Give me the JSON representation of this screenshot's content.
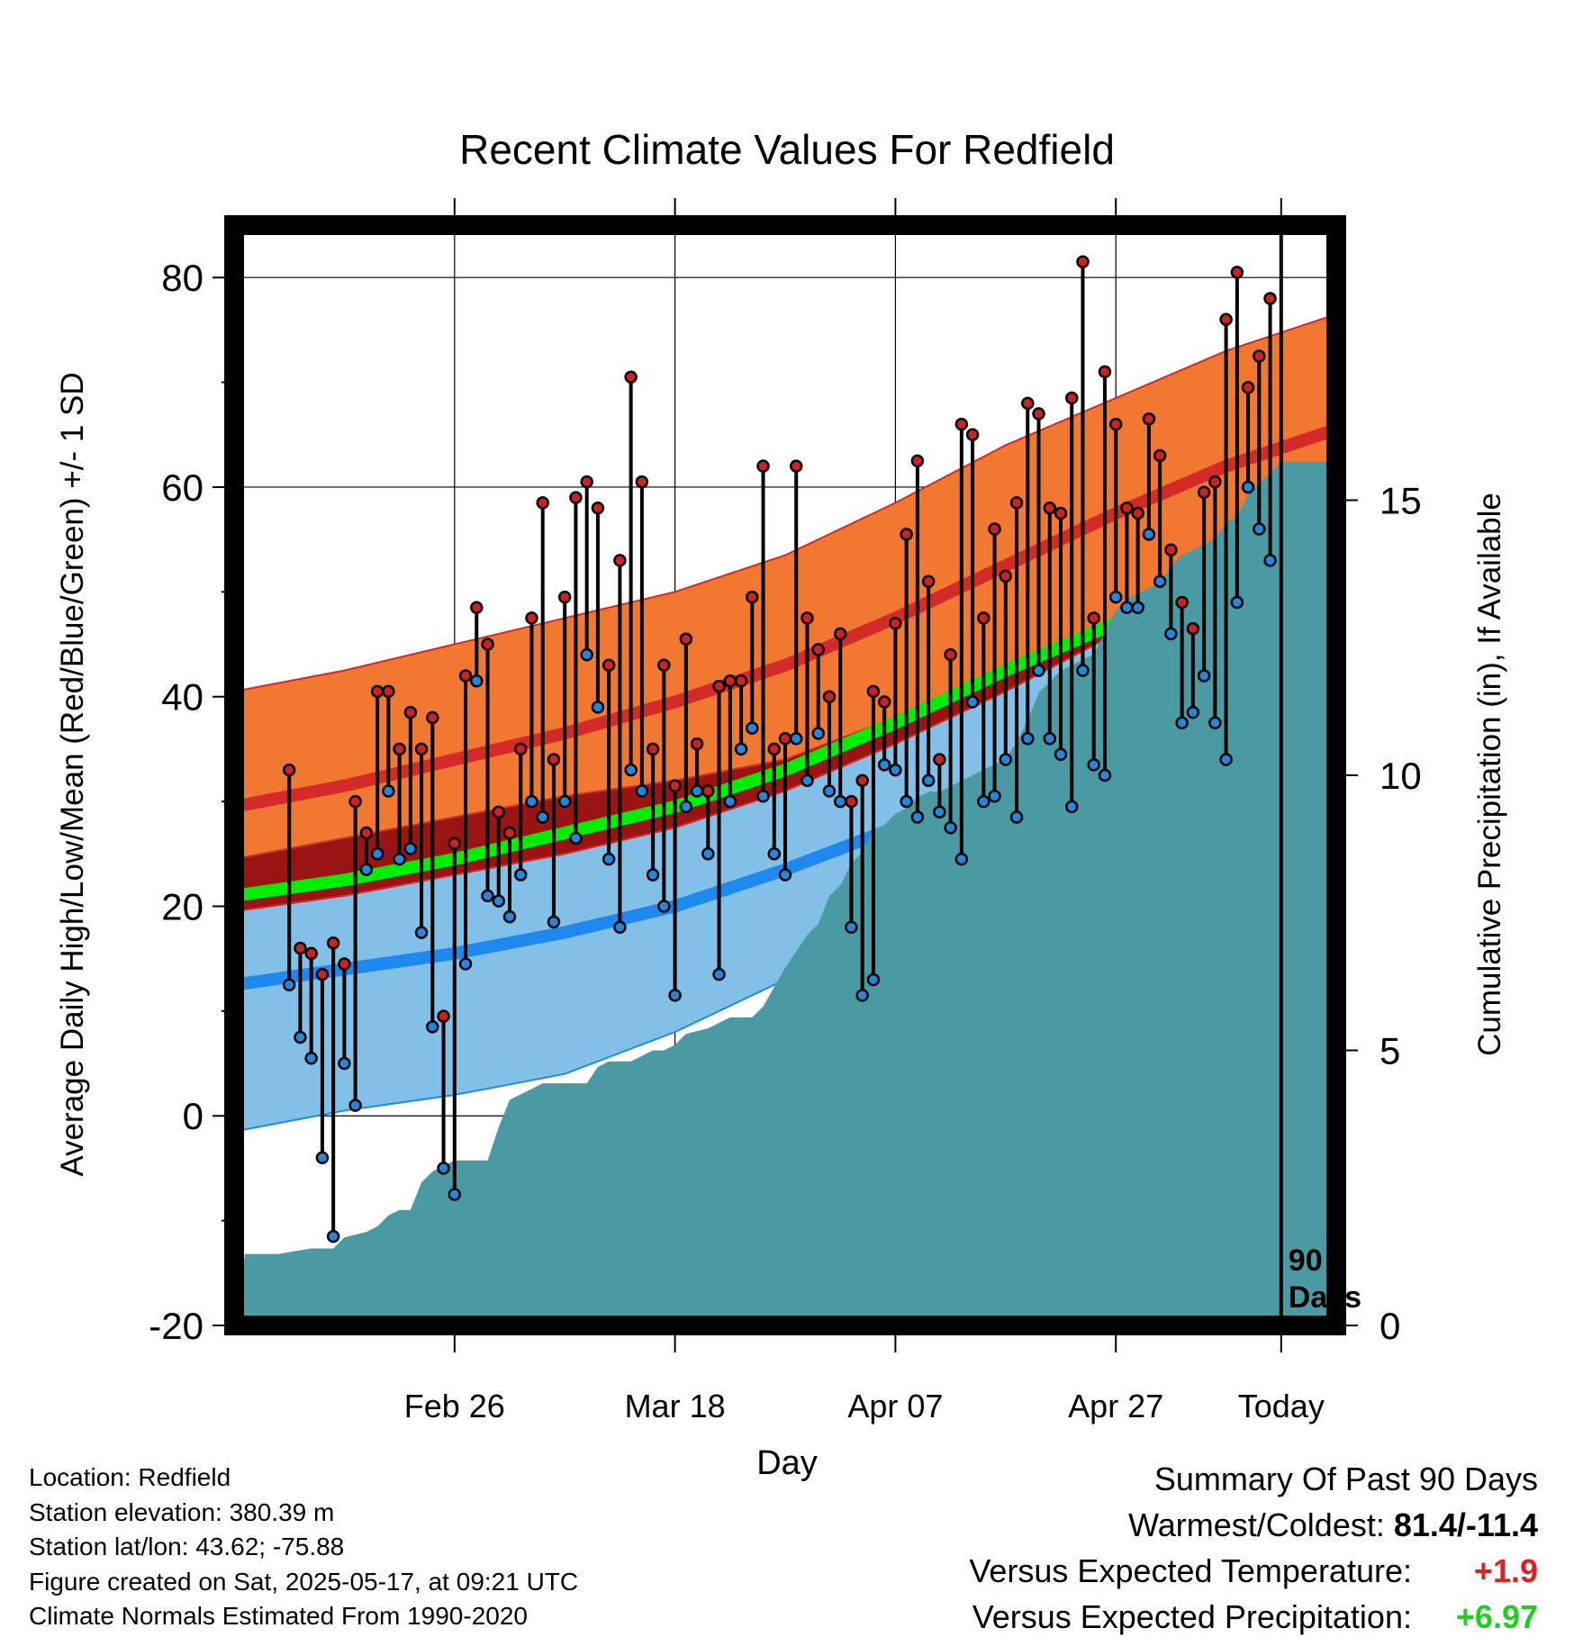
{
  "chart_data": {
    "type": "line",
    "title": "Recent Climate Values For Redfield",
    "xlabel": "Day",
    "ylabel": "Average Daily High/Low/Mean (Red/Blue/Green) +/- 1 SD",
    "y2label": "Cumulative Precipitation (in), If Available",
    "x_day_range": [
      -95,
      5
    ],
    "x_tick_labels": [
      {
        "day": -75,
        "label": "Feb 26"
      },
      {
        "day": -55,
        "label": "Mar 18"
      },
      {
        "day": -35,
        "label": "Apr 07"
      },
      {
        "day": -15,
        "label": "Apr 27"
      },
      {
        "day": 0,
        "label": "Today"
      }
    ],
    "ylim": [
      -20,
      85
    ],
    "y_ticks": [
      -20,
      0,
      20,
      40,
      60,
      80
    ],
    "y2lim": [
      0,
      20
    ],
    "y2_ticks": [
      0,
      5,
      10,
      15
    ],
    "grid": true,
    "period_marker": {
      "day": 0,
      "label_line1": "90",
      "label_line2": "Days"
    },
    "normals_days": [
      -95,
      -85,
      -75,
      -65,
      -55,
      -45,
      -35,
      -25,
      -15,
      -5,
      5
    ],
    "normal_high": [
      29.5,
      31.5,
      34,
      36.5,
      39.5,
      43,
      47.5,
      52.5,
      57.5,
      62,
      65.5
    ],
    "normal_high_sd_upper": [
      40.5,
      42.5,
      45,
      47.5,
      50,
      53.5,
      58.5,
      64,
      68.5,
      73,
      76.5
    ],
    "normal_high_sd_lower": [
      19.5,
      21,
      23,
      25,
      27.5,
      31,
      35.5,
      40.5,
      46,
      51.5,
      57.5
    ],
    "normal_low": [
      12.5,
      14,
      15.5,
      17.5,
      20,
      23.5,
      27.5,
      33,
      37.5,
      41,
      45.5
    ],
    "normal_low_sd_upper": [
      24.5,
      26.5,
      28.5,
      30.5,
      32,
      34,
      38,
      42.5,
      46.5,
      50.5,
      55
    ],
    "normal_low_sd_lower": [
      -1.5,
      0.5,
      2,
      4,
      8,
      13,
      18.5,
      25,
      29.5,
      33,
      39.5
    ],
    "normal_mean": [
      21,
      22.5,
      24.5,
      27,
      29.5,
      33,
      37.5,
      42.5,
      47,
      51.5,
      56.5
    ],
    "series": [
      {
        "name": "High",
        "color": "#cc2222",
        "values": [
          33,
          16,
          15.5,
          13.5,
          16.5,
          14.5,
          30,
          27,
          40.5,
          40.5,
          35,
          38.5,
          35,
          38,
          9.5,
          26,
          42,
          48.5,
          45,
          29,
          27,
          35,
          47.5,
          58.5,
          34,
          49.5,
          59,
          60.5,
          58,
          43,
          53,
          70.5,
          60.5,
          35,
          43,
          31.5,
          45.5,
          35.5,
          31,
          41,
          41.5,
          41.5,
          49.5,
          62,
          35,
          36,
          62,
          47.5,
          44.5,
          40,
          46,
          30,
          32,
          40.5,
          39.5,
          47,
          55.5,
          62.5,
          51,
          34,
          44,
          66,
          65,
          47.5,
          56,
          51.5,
          58.5,
          68,
          67,
          58,
          57.5,
          68.5,
          81.5,
          47.5,
          71,
          66,
          58,
          57.5,
          66.5,
          63,
          54,
          49,
          46.5,
          59.5,
          60.5,
          76,
          80.5,
          69.5,
          72.5,
          78
        ]
      },
      {
        "name": "Low",
        "color": "#2288dd",
        "values": [
          12.5,
          7.5,
          5.5,
          -4,
          -11.5,
          5,
          1,
          23.5,
          25,
          31,
          24.5,
          25.5,
          17.5,
          8.5,
          -5,
          -7.5,
          14.5,
          41.5,
          21,
          20.5,
          19,
          23,
          30,
          28.5,
          18.5,
          30,
          26.5,
          44,
          39,
          24.5,
          18,
          33,
          31,
          23,
          20,
          11.5,
          29.5,
          31,
          25,
          13.5,
          30,
          35,
          37,
          30.5,
          25,
          23,
          36,
          32,
          36.5,
          31,
          30,
          18,
          11.5,
          13,
          33.5,
          33,
          30,
          28.5,
          32,
          29,
          27.5,
          24.5,
          39.5,
          30,
          30.5,
          34,
          28.5,
          36,
          42.5,
          36,
          34.5,
          29.5,
          42.5,
          33.5,
          32.5,
          49.5,
          48.5,
          48.5,
          55.5,
          51,
          46,
          37.5,
          38.5,
          42,
          37.5,
          34,
          49,
          60,
          56,
          53
        ]
      }
    ],
    "precip_series": {
      "name": "Cumulative Precipitation",
      "color": "#4a9aa4",
      "days": [
        -95,
        -94,
        -91,
        -88,
        -86,
        -85,
        -83,
        -82,
        -81,
        -80,
        -79,
        -78,
        -77,
        -76,
        -75,
        -74,
        -73,
        -72,
        -71,
        -70,
        -69,
        -68,
        -67,
        -66,
        -65,
        -64,
        -63,
        -62,
        -61,
        -60,
        -59,
        -58,
        -57,
        -56,
        -55,
        -54,
        -52,
        -50,
        -49,
        -48,
        -47,
        -45,
        -44,
        -43,
        -42,
        -41,
        -40,
        -39,
        -38,
        -37,
        -36,
        -35,
        -34,
        -33,
        -32,
        -31,
        -30,
        -29,
        -28,
        -27,
        -25,
        -24,
        -23,
        -22,
        -21,
        -20,
        -19,
        -17,
        -16,
        -15,
        -14,
        -12,
        -11,
        -10,
        -9,
        -8,
        -7,
        -6,
        -5,
        -4,
        -3,
        -1,
        0,
        5
      ],
      "values": [
        0,
        1.3,
        1.3,
        1.4,
        1.4,
        1.6,
        1.7,
        1.8,
        2,
        2.1,
        2.1,
        2.6,
        2.8,
        2.9,
        3.0,
        3.0,
        3.0,
        3.0,
        3.6,
        4.1,
        4.2,
        4.3,
        4.4,
        4.4,
        4.4,
        4.4,
        4.4,
        4.7,
        4.8,
        4.8,
        4.8,
        4.9,
        5.0,
        5.0,
        5.1,
        5.3,
        5.4,
        5.6,
        5.6,
        5.6,
        5.8,
        6.5,
        6.8,
        7.1,
        7.3,
        7.8,
        8.0,
        8.4,
        8.6,
        9.0,
        9.1,
        9.3,
        9.4,
        9.6,
        9.7,
        9.7,
        9.8,
        9.9,
        10.0,
        10.1,
        10.3,
        10.6,
        11.0,
        11.5,
        11.7,
        11.9,
        12.0,
        12.2,
        12.6,
        13.0,
        13.2,
        13.4,
        13.5,
        13.8,
        14.0,
        14.1,
        14.2,
        14.3,
        14.6,
        14.7,
        15.1,
        15.5,
        15.7,
        15.7
      ]
    }
  },
  "footer": {
    "location": "Location: Redfield",
    "elevation": "Station elevation: 380.39 m",
    "latlon": "Station lat/lon: 43.62; -75.88",
    "created": "Figure created on Sat, 2025-05-17, at 09:21 UTC",
    "normals": "Climate Normals Estimated From 1990-2020"
  },
  "summary": {
    "title": "Summary Of Past 90 Days",
    "warmest_label": "Warmest/Coldest:",
    "warmest_value": "81.4/-11.4",
    "temp_label": "Versus Expected Temperature:",
    "temp_value": "+1.9",
    "precip_label": "Versus Expected Precipitation:",
    "precip_value": "+6.97"
  },
  "colors": {
    "high_band": "#f07830",
    "high_line": "#d42a2a",
    "low_band": "#82c0e8",
    "low_line": "#1e88ee",
    "mean_band": "#00ee00",
    "overlap": "#9b1414",
    "precip": "#4a9aa4"
  }
}
